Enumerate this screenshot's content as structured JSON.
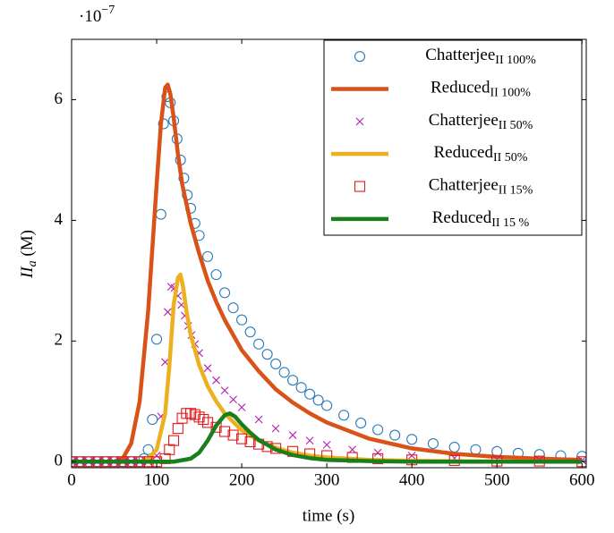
{
  "chart_data": {
    "type": "line",
    "y_multiplier": {
      "base": "·10",
      "exponent": "−7"
    },
    "xlabel": "time (s)",
    "ylabel": {
      "text": "II",
      "sub": "a",
      "rest": " (M)"
    },
    "xlim": [
      0,
      605
    ],
    "ylim": [
      -0.1,
      7
    ],
    "xticks": [
      0,
      100,
      200,
      300,
      400,
      500,
      600
    ],
    "yticks": [
      0,
      2,
      4,
      6
    ],
    "legend": "north east",
    "series": [
      {
        "name": "Chatterjee",
        "subscript": "II 100%",
        "color": "#2b7bb9",
        "marker": "circle",
        "line": false,
        "x": [
          0,
          10,
          20,
          30,
          40,
          50,
          60,
          70,
          80,
          85,
          90,
          95,
          100,
          105,
          108,
          112,
          116,
          120,
          124,
          128,
          132,
          136,
          140,
          145,
          150,
          160,
          170,
          180,
          190,
          200,
          210,
          220,
          230,
          240,
          250,
          260,
          270,
          280,
          290,
          300,
          320,
          340,
          360,
          380,
          400,
          425,
          450,
          475,
          500,
          525,
          550,
          575,
          600
        ],
        "values": [
          0,
          0,
          0,
          0,
          0,
          0,
          0,
          0,
          0,
          0.05,
          0.2,
          0.7,
          2.03,
          4.1,
          5.6,
          6.05,
          5.95,
          5.65,
          5.35,
          5.0,
          4.7,
          4.42,
          4.2,
          3.95,
          3.75,
          3.4,
          3.1,
          2.8,
          2.55,
          2.35,
          2.15,
          1.95,
          1.78,
          1.62,
          1.48,
          1.35,
          1.23,
          1.12,
          1.02,
          0.93,
          0.77,
          0.64,
          0.53,
          0.44,
          0.37,
          0.3,
          0.24,
          0.2,
          0.17,
          0.14,
          0.12,
          0.1,
          0.09
        ]
      },
      {
        "name": "Reduced",
        "subscript": "II 100%",
        "color": "#d95319",
        "marker": null,
        "line": true,
        "x": [
          0,
          50,
          60,
          70,
          80,
          90,
          100,
          105,
          110,
          113,
          116,
          120,
          125,
          130,
          140,
          150,
          160,
          170,
          180,
          200,
          220,
          240,
          260,
          280,
          300,
          350,
          400,
          450,
          500,
          550,
          600
        ],
        "values": [
          0,
          0,
          0.05,
          0.3,
          1.0,
          2.5,
          4.6,
          5.6,
          6.2,
          6.25,
          6.1,
          5.7,
          5.1,
          4.6,
          3.95,
          3.45,
          3.0,
          2.65,
          2.35,
          1.85,
          1.5,
          1.2,
          0.98,
          0.8,
          0.65,
          0.38,
          0.22,
          0.13,
          0.08,
          0.05,
          0.03
        ]
      },
      {
        "name": "Chatterjee",
        "subscript": "II 50%",
        "color": "#b31fb3",
        "marker": "x",
        "line": false,
        "x": [
          0,
          10,
          20,
          30,
          40,
          50,
          60,
          70,
          80,
          90,
          100,
          105,
          110,
          113,
          117,
          121,
          125,
          129,
          133,
          137,
          141,
          145,
          150,
          160,
          170,
          180,
          190,
          200,
          220,
          240,
          260,
          280,
          300,
          330,
          360,
          400,
          450,
          500,
          550,
          600
        ],
        "values": [
          0,
          0,
          0,
          0,
          0,
          0,
          0,
          0,
          0,
          0,
          0.1,
          0.75,
          1.65,
          2.48,
          2.9,
          2.88,
          2.75,
          2.6,
          2.42,
          2.25,
          2.1,
          1.95,
          1.8,
          1.55,
          1.35,
          1.18,
          1.03,
          0.9,
          0.7,
          0.55,
          0.44,
          0.35,
          0.28,
          0.2,
          0.15,
          0.1,
          0.06,
          0.04,
          0.03,
          0.02
        ]
      },
      {
        "name": "Reduced",
        "subscript": "II 50%",
        "color": "#edb120",
        "marker": null,
        "line": true,
        "x": [
          0,
          80,
          90,
          100,
          110,
          115,
          120,
          125,
          128,
          131,
          135,
          140,
          150,
          160,
          170,
          180,
          200,
          220,
          240,
          260,
          280,
          300,
          350,
          400,
          500,
          600
        ],
        "values": [
          0,
          0,
          0.05,
          0.2,
          0.8,
          1.6,
          2.6,
          3.05,
          3.1,
          2.9,
          2.5,
          2.1,
          1.6,
          1.25,
          1.0,
          0.8,
          0.52,
          0.35,
          0.23,
          0.15,
          0.1,
          0.07,
          0.03,
          0.015,
          0.005,
          0
        ]
      },
      {
        "name": "Chatterjee",
        "subscript": "II 15%",
        "color": "#e31a1c",
        "marker": "square",
        "line": false,
        "x": [
          0,
          10,
          20,
          30,
          40,
          50,
          60,
          70,
          80,
          90,
          100,
          110,
          115,
          120,
          125,
          130,
          135,
          140,
          145,
          150,
          155,
          160,
          170,
          180,
          190,
          200,
          210,
          220,
          230,
          240,
          260,
          280,
          300,
          330,
          360,
          400,
          450,
          500,
          550,
          600
        ],
        "values": [
          0,
          0,
          0,
          0,
          0,
          0,
          0,
          0,
          0,
          0,
          0,
          0.05,
          0.2,
          0.35,
          0.55,
          0.72,
          0.8,
          0.8,
          0.78,
          0.74,
          0.7,
          0.65,
          0.57,
          0.5,
          0.44,
          0.38,
          0.33,
          0.29,
          0.25,
          0.22,
          0.17,
          0.13,
          0.1,
          0.07,
          0.05,
          0.03,
          0.02,
          0.01,
          0.01,
          0
        ]
      },
      {
        "name": "Reduced",
        "subscript": "II 15 %",
        "color": "#1a7f1a",
        "marker": null,
        "line": true,
        "x": [
          0,
          120,
          140,
          150,
          160,
          170,
          180,
          186,
          192,
          200,
          210,
          220,
          240,
          260,
          280,
          300,
          350,
          400,
          600
        ],
        "values": [
          0,
          0,
          0.05,
          0.15,
          0.35,
          0.6,
          0.77,
          0.8,
          0.75,
          0.62,
          0.48,
          0.36,
          0.2,
          0.11,
          0.06,
          0.03,
          0.01,
          0,
          0
        ]
      }
    ]
  }
}
